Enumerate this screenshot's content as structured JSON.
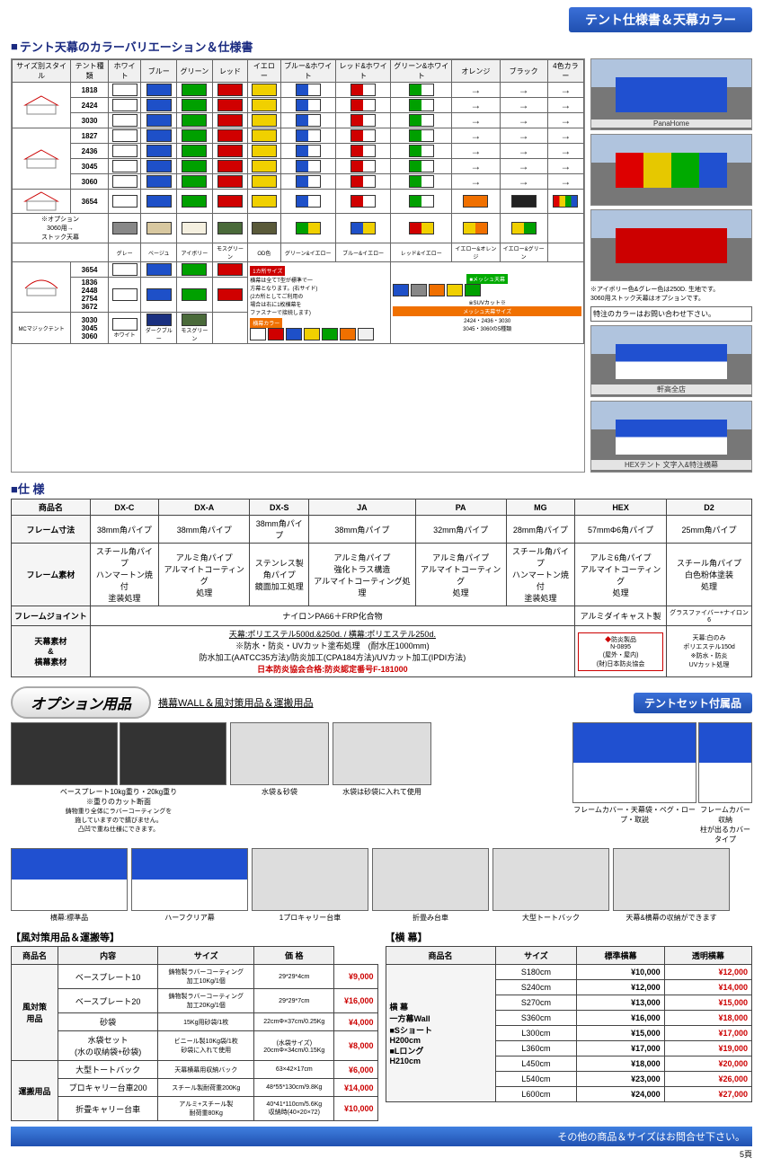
{
  "header": {
    "label": "テント仕様書＆天幕カラー"
  },
  "colorSection": {
    "title": "テント天幕のカラーバリエーション＆仕様書",
    "headers": [
      "サイズ別スタイル",
      "テント種類",
      "ホワイト",
      "ブルー",
      "グリーン",
      "レッド",
      "イエロー",
      "ブルー&ホワイト",
      "レッド&ホワイト",
      "グリーン&ホワイト",
      "オレンジ",
      "ブラック",
      "4色カラー"
    ],
    "sizeRows": [
      "1818",
      "2424",
      "3030",
      "1827",
      "2436",
      "3045",
      "3060",
      "3654"
    ],
    "extraSizes": [
      "1836",
      "2448",
      "2754",
      "3672"
    ],
    "mcSizes": [
      "3030",
      "3045",
      "3060"
    ],
    "mcLabel": "MCマジックテント",
    "mcColors": [
      "ホワイト",
      "ダークブルー",
      "モスグリーン"
    ],
    "optionNote": "※オプション\n3060用→\nストック天幕",
    "optionColors": [
      "グレー",
      "ベージュ",
      "アイボリー",
      "モスグリーン",
      "OD色",
      "グリーン&イエロー",
      "ブルー&イエロー",
      "レッド&イエロー",
      "イエロー&オレンジ",
      "イエロー&グリーン"
    ],
    "sideLabel": "1カ所サイズ",
    "sideNote": "横幕は全てT型が標準で一\n方幕となります。(右サイド)\n(2カ所としてご利用の\n場合は右に1枚横幕を\nファスナーで接続します)",
    "makuLabel": "横幕カラー",
    "makuColors": [
      "白",
      "赤",
      "青",
      "黄",
      "緑",
      "橙",
      "透明"
    ],
    "meshLabel": "メッシュ天幕",
    "meshColors": [
      "ブルー",
      "グレー",
      "オレンジ",
      "イエロー",
      "グリーン"
    ],
    "meshSizeLabel": "メッシュ天幕サイズ",
    "meshSizes": "2424・2436・3030\n3045・3060の5種類",
    "ivoryNote": "※アイボリー色&グレー色は250D. 生地です。\n3060用ストック天幕はオプションです。",
    "customNote": "特注のカラーはお問い合わせ下さい。",
    "photos": [
      {
        "caption": "PanaHome",
        "type": "blue"
      },
      {
        "caption": "",
        "type": "multi"
      },
      {
        "caption": "",
        "type": "red"
      },
      {
        "caption": "軒高全店",
        "type": "bluewhite"
      },
      {
        "caption": "HEXテント 文字入&特注横幕",
        "type": "bluewhite"
      }
    ],
    "swatchColors": {
      "white": "#ffffff",
      "blue": "#1e50c8",
      "green": "#00a000",
      "red": "#d00000",
      "yellow": "#f0d000",
      "orange": "#f07000",
      "black": "#222222",
      "grey": "#888888",
      "beige": "#d8c8a0",
      "ivory": "#f5f0e0",
      "moss": "#4a6a3a",
      "od": "#5a5a3a",
      "darkblue": "#1a3080"
    }
  },
  "spec": {
    "title": "仕 様",
    "cols": [
      "商品名",
      "DX-C",
      "DX-A",
      "DX-S",
      "JA",
      "PA",
      "MG",
      "HEX",
      "D2"
    ],
    "rows": [
      {
        "h": "フレーム寸法",
        "c": [
          "38mm角パイプ",
          "38mm角パイプ",
          "38mm角パイプ",
          "38mm角パイプ",
          "32mm角パイプ",
          "28mm角パイプ",
          "57mmΦ6角パイプ",
          "25mm角パイプ"
        ]
      },
      {
        "h": "フレーム素材",
        "c": [
          "スチール角パイプ\nハンマートン焼付\n塗装処理",
          "アルミ角パイプ\nアルマイトコーティング\n処理",
          "ステンレス製\n角パイプ\n鏡面加工処理",
          "アルミ角パイプ\n強化トラス構造\nアルマイトコーティング処理",
          "アルミ角パイプ\nアルマイトコーティング\n処理",
          "スチール角パイプ\nハンマートン焼付\n塗装処理",
          "アルミ6角パイプ\nアルマイトコーティング\n処理",
          "スチール角パイプ\n白色粉体塗装\n処理"
        ]
      }
    ],
    "jointRow": {
      "h": "フレームジョイント",
      "main": "ナイロンPA66＋FRP化合物",
      "hex": "アルミダイキャスト製",
      "d2": "グラスファイバー+ナイロン6"
    },
    "canopyRow": {
      "h": "天幕素材\n&\n横幕素材",
      "line1": "天幕:ポリエステル500d.&250d. / 横幕:ポリエステル250d.",
      "line2": "※防水・防炎・UVカット塗布処理　(耐水圧1000mm)",
      "line3": "防水加工(AATCC35方法)/防炎加工(CPA184方法)/UVカット加工(IPDI方法)",
      "line4": "日本防炎協会合格:防炎認定番号F-181000",
      "hexBadge": "防炎製品\nN-0895\n(屋外・屋内)\n(財)日本防炎協会",
      "d2": "天幕:白のみ\nポリエステル150d\n※防水・防炎\nUVカット処理"
    }
  },
  "options": {
    "title": "オプション用品",
    "sub": "横幕WALL＆風対策用品＆運搬用品",
    "tentsetLabel": "テントセット付属品",
    "items1": [
      {
        "cap": "ベースプレート10kg重り・20kg重り",
        "note": "※重りのカット断面",
        "sub": "鋳物重り全体にラバーコーティングを\n施していますので錆びません。\n凸凹で重ね仕様にできます。"
      },
      {
        "cap": "水袋＆砂袋"
      },
      {
        "cap": "水袋は砂袋に入れて使用"
      }
    ],
    "tentsetCaps": [
      "フレームカバー・天幕袋・ペグ・ロープ・取説",
      "フレームカバー収納\n柱が出るカバータイプ"
    ],
    "items2": [
      {
        "cap": "横幕:標準品"
      },
      {
        "cap": "ハーフクリア幕"
      },
      {
        "cap": "1プロキャリー台車"
      },
      {
        "cap": "折畳み台車"
      },
      {
        "cap": "大型トートバック"
      },
      {
        "cap": "天幕&横幕の収納ができます"
      }
    ]
  },
  "wind": {
    "header": "【風対策用品＆運搬等】",
    "cols": [
      "商品名",
      "内容",
      "サイズ",
      "価 格"
    ],
    "rows": [
      {
        "cat": "風対策\n用品",
        "name": "ベースプレート10",
        "desc": "鋳物製ラバーコーティング\n加工10Kg/1個",
        "size": "29*29*4cm",
        "price": "¥9,000"
      },
      {
        "name": "ベースプレート20",
        "desc": "鋳物製ラバーコーティング\n加工20Kg/1個",
        "size": "29*29*7cm",
        "price": "¥16,000"
      },
      {
        "name": "砂袋",
        "desc": "15Kg用砂袋/1枚",
        "size": "22cmΦ×37cm/0.25Kg",
        "price": "¥4,000"
      },
      {
        "name": "水袋セット\n(水の収納袋+砂袋)",
        "desc": "ビニール製10Kg袋/1枚\n砂袋に入れて使用",
        "size": "(水袋サイズ)\n20cmΦ×34cm/0.15Kg",
        "price": "¥8,000"
      },
      {
        "cat": "運搬用品",
        "name": "大型トートバック",
        "desc": "天幕横幕用収納バック",
        "size": "63×42×17cm",
        "price": "¥6,000"
      },
      {
        "name": "プロキャリー台車200",
        "desc": "スチール製耐荷重200Kg",
        "size": "48*55*130cm/9.8Kg",
        "price": "¥14,000"
      },
      {
        "name": "折畳キャリー台車",
        "desc": "アルミ+スチール製\n耐荷重80Kg",
        "size": "40*41*110cm/5.6Kg\n収納時(40×20×72)",
        "price": "¥10,000"
      }
    ]
  },
  "maku": {
    "header": "【横 幕】",
    "cols": [
      "商品名",
      "サイズ",
      "標準横幕",
      "透明横幕"
    ],
    "name": "横 幕\n一方幕Wall\n■Sショート\nH200cm\n■Lロング\nH210cm",
    "rows": [
      {
        "size": "S180cm",
        "p1": "¥10,000",
        "p2": "¥12,000"
      },
      {
        "size": "S240cm",
        "p1": "¥12,000",
        "p2": "¥14,000"
      },
      {
        "size": "S270cm",
        "p1": "¥13,000",
        "p2": "¥15,000"
      },
      {
        "size": "S360cm",
        "p1": "¥16,000",
        "p2": "¥18,000"
      },
      {
        "size": "L300cm",
        "p1": "¥15,000",
        "p2": "¥17,000"
      },
      {
        "size": "L360cm",
        "p1": "¥17,000",
        "p2": "¥19,000"
      },
      {
        "size": "L450cm",
        "p1": "¥18,000",
        "p2": "¥20,000"
      },
      {
        "size": "L540cm",
        "p1": "¥23,000",
        "p2": "¥26,000"
      },
      {
        "size": "L600cm",
        "p1": "¥24,000",
        "p2": "¥27,000"
      }
    ]
  },
  "footer": {
    "text": "その他の商品＆サイズはお問合せ下さい。",
    "pageNum": "5頁"
  }
}
